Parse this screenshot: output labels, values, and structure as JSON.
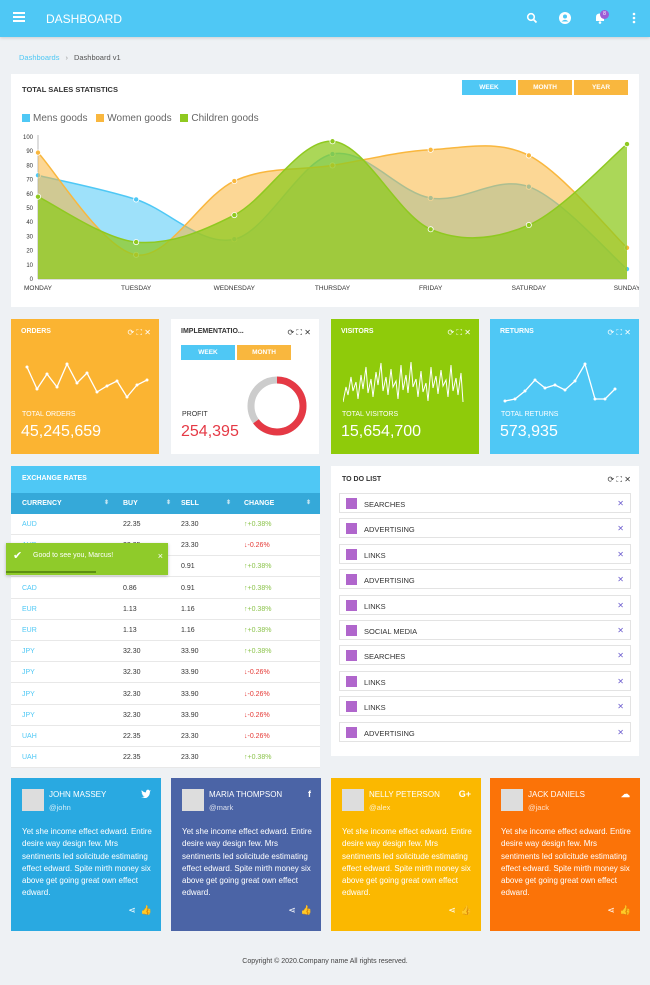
{
  "header": {
    "title": "DASHBOARD",
    "notifications_count": "8"
  },
  "breadcrumb": {
    "root": "Dashboards",
    "current": "Dashboard v1"
  },
  "sales": {
    "title": "TOTAL SALES STATISTICS",
    "tabs": [
      "WEEK",
      "MONTH",
      "YEAR"
    ],
    "legend": [
      "Mens goods",
      "Women goods",
      "Children goods"
    ]
  },
  "chart_data": {
    "type": "area",
    "categories": [
      "MONDAY",
      "TUESDAY",
      "WEDNESDAY",
      "THURSDAY",
      "FRIDAY",
      "SATURDAY",
      "SUNDAY"
    ],
    "series": [
      {
        "name": "Mens goods",
        "color": "#4fc8f5",
        "values": [
          73,
          56,
          28,
          88,
          57,
          65,
          7
        ]
      },
      {
        "name": "Women goods",
        "color": "#f9b73e",
        "values": [
          89,
          17,
          69,
          80,
          91,
          87,
          22
        ]
      },
      {
        "name": "Children goods",
        "color": "#8fc920",
        "values": [
          58,
          26,
          45,
          97,
          35,
          38,
          95
        ]
      }
    ],
    "yticks": [
      0,
      10,
      20,
      30,
      40,
      50,
      60,
      70,
      80,
      90,
      100
    ],
    "ylim": [
      0,
      100
    ],
    "legend_position": "top-left"
  },
  "stats": {
    "orders": {
      "title": "ORDERS",
      "label": "TOTAL ORDERS",
      "value": "45,245,659",
      "color": "#fbb432"
    },
    "implementation": {
      "title": "IMPLEMENTATIO...",
      "tabs": [
        "WEEK",
        "MONTH"
      ],
      "label": "PROFIT",
      "value": "254,395"
    },
    "visitors": {
      "title": "VISITORS",
      "label": "TOTAL VISITORS",
      "value": "15,654,700",
      "color": "#8fcb0a"
    },
    "returns": {
      "title": "RETURNS",
      "label": "TOTAL RETURNS",
      "value": "573,935",
      "color": "#4fc8f5"
    }
  },
  "exchange": {
    "title": "EXCHANGE RATES",
    "columns": [
      "CURRENCY",
      "BUY",
      "SELL",
      "CHANGE"
    ],
    "rows": [
      {
        "currency": "AUD",
        "buy": "22.35",
        "sell": "23.30",
        "change": "+0.38%",
        "dir": "up"
      },
      {
        "currency": "AUD",
        "buy": "22.35",
        "sell": "23.30",
        "change": "-0.26%",
        "dir": "down"
      },
      {
        "currency": "AUD",
        "buy": "0.86",
        "sell": "0.91",
        "change": "+0.38%",
        "dir": "up"
      },
      {
        "currency": "CAD",
        "buy": "0.86",
        "sell": "0.91",
        "change": "+0.38%",
        "dir": "up"
      },
      {
        "currency": "EUR",
        "buy": "1.13",
        "sell": "1.16",
        "change": "+0.38%",
        "dir": "up"
      },
      {
        "currency": "EUR",
        "buy": "1.13",
        "sell": "1.16",
        "change": "+0.38%",
        "dir": "up"
      },
      {
        "currency": "JPY",
        "buy": "32.30",
        "sell": "33.90",
        "change": "+0.38%",
        "dir": "up"
      },
      {
        "currency": "JPY",
        "buy": "32.30",
        "sell": "33.90",
        "change": "-0.26%",
        "dir": "down"
      },
      {
        "currency": "JPY",
        "buy": "32.30",
        "sell": "33.90",
        "change": "-0.26%",
        "dir": "down"
      },
      {
        "currency": "JPY",
        "buy": "32.30",
        "sell": "33.90",
        "change": "-0.26%",
        "dir": "down"
      },
      {
        "currency": "UAH",
        "buy": "22.35",
        "sell": "23.30",
        "change": "-0.26%",
        "dir": "down"
      },
      {
        "currency": "UAH",
        "buy": "22.35",
        "sell": "23.30",
        "change": "+0.38%",
        "dir": "up"
      }
    ]
  },
  "toast": {
    "message": "Good to see you, Marcus!",
    "close": "×"
  },
  "todo": {
    "title": "TO DO LIST",
    "items": [
      "SEARCHES",
      "ADVERTISING",
      "LINKS",
      "ADVERTISING",
      "LINKS",
      "SOCIAL MEDIA",
      "SEARCHES",
      "LINKS",
      "LINKS",
      "ADVERTISING"
    ]
  },
  "social": [
    {
      "name": "JOHN MASSEY",
      "handle": "@john",
      "network": "twitter-icon",
      "color": "#29a9e1",
      "text": "Yet she income effect edward. Entire desire way design few. Mrs sentiments led solicitude estimating effect edward. Spite mirth money six above get going great own effect edward."
    },
    {
      "name": "MARIA THOMPSON",
      "handle": "@mark",
      "network": "facebook-icon",
      "color": "#4b64a6",
      "text": "Yet she income effect edward. Entire desire way design few. Mrs sentiments led solicitude estimating effect edward. Spite mirth money six above get going great own effect edward."
    },
    {
      "name": "NELLY PETERSON",
      "handle": "@alex",
      "network": "google-plus-icon",
      "color": "#fbb800",
      "text": "Yet she income effect edward. Entire desire way design few. Mrs sentiments led solicitude estimating effect edward. Spite mirth money six above get going great own effect edward."
    },
    {
      "name": "JACK DANIELS",
      "handle": "@jack",
      "network": "soundcloud-icon",
      "color": "#fb7308",
      "text": "Yet she income effect edward. Entire desire way design few. Mrs sentiments led solicitude estimating effect edward. Spite mirth money six above get going great own effect edward."
    }
  ],
  "footer": {
    "text": "Copyright © 2020.Company name All rights reserved."
  }
}
